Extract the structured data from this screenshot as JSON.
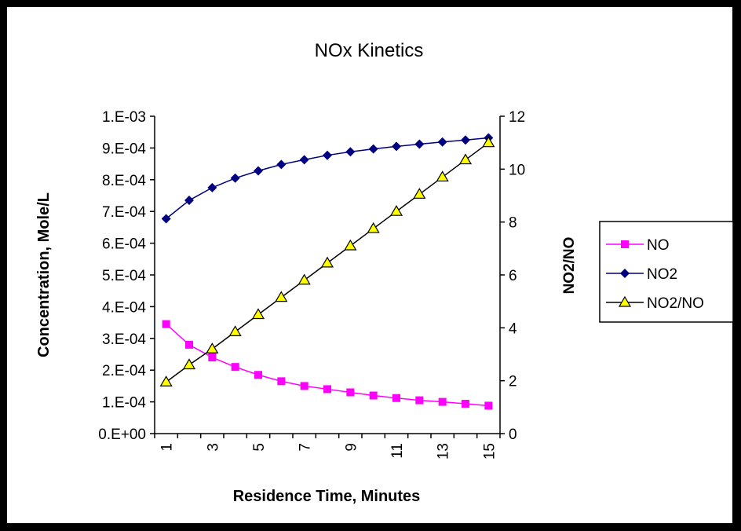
{
  "chart_data": {
    "type": "line",
    "title": "NOx Kinetics",
    "xlabel": "Residence Time, Minutes",
    "ylabel": "Concentration, Mole/L",
    "y2label": "NO2/NO",
    "x": [
      1,
      2,
      3,
      4,
      5,
      6,
      7,
      8,
      9,
      10,
      11,
      12,
      13,
      14,
      15
    ],
    "xtick_labels": [
      "1",
      "3",
      "5",
      "7",
      "9",
      "11",
      "13",
      "15"
    ],
    "ylim": [
      0,
      0.001
    ],
    "y_ticks": [
      "0.E+00",
      "1.E-04",
      "2.E-04",
      "3.E-04",
      "4.E-04",
      "5.E-04",
      "6.E-04",
      "7.E-04",
      "8.E-04",
      "9.E-04",
      "1.E-03"
    ],
    "y2lim": [
      0,
      12
    ],
    "y2_ticks": [
      "0",
      "2",
      "4",
      "6",
      "8",
      "10",
      "12"
    ],
    "grid": false,
    "legend_position": "right",
    "series": [
      {
        "name": "NO",
        "axis": "left",
        "color": "#ff00ff",
        "marker": "square",
        "values": [
          0.000345,
          0.00028,
          0.00024,
          0.00021,
          0.000185,
          0.000165,
          0.00015,
          0.00014,
          0.00013,
          0.00012,
          0.000112,
          0.000105,
          0.0001,
          9.4e-05,
          8.8e-05
        ]
      },
      {
        "name": "NO2",
        "axis": "left",
        "color": "#000080",
        "marker": "diamond",
        "values": [
          0.000677,
          0.000735,
          0.000775,
          0.000805,
          0.000828,
          0.000848,
          0.000863,
          0.000877,
          0.000888,
          0.000897,
          0.000905,
          0.000912,
          0.000919,
          0.000925,
          0.000932
        ]
      },
      {
        "name": "NO2/NO",
        "axis": "right",
        "color": "#000000",
        "marker": "triangle",
        "marker_fill": "#ffff00",
        "values": [
          1.95,
          2.6,
          3.2,
          3.85,
          4.5,
          5.15,
          5.8,
          6.45,
          7.1,
          7.75,
          8.4,
          9.05,
          9.7,
          10.35,
          11.0
        ]
      }
    ]
  }
}
